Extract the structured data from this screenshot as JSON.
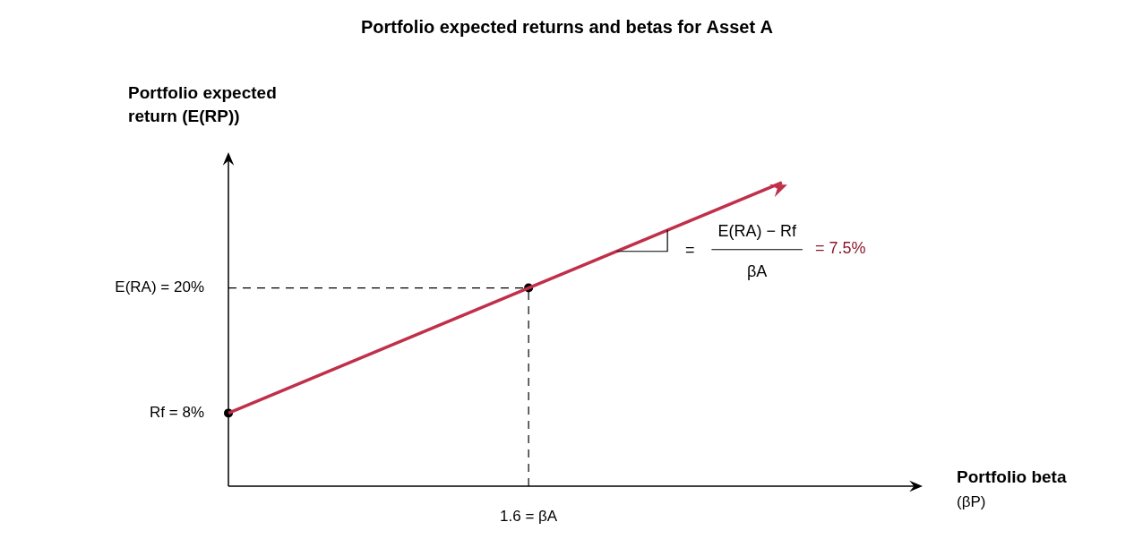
{
  "chart_data": {
    "type": "line",
    "title": "Portfolio expected returns and betas for Asset A",
    "y_label": [
      "Portfolio expected",
      "return (E(RP))"
    ],
    "x_label": [
      "Portfolio beta",
      "(βP)"
    ],
    "xlim": [
      0,
      3.7
    ],
    "ylim": [
      1,
      33
    ],
    "xticks": [
      {
        "value": 1.6,
        "label": "1.6 = βA"
      }
    ],
    "yticks": [
      {
        "value": 8,
        "label": "Rf = 8%"
      },
      {
        "value": 20,
        "label": "E(RA) = 20%"
      }
    ],
    "grid": false,
    "series": [
      {
        "type": "line",
        "x": [
          0,
          1.6
        ],
        "values": [
          20,
          20
        ],
        "color": "#000000",
        "line_style": "dashed",
        "marker": "none"
      },
      {
        "type": "line",
        "x": [
          1.6,
          1.6
        ],
        "values": [
          1,
          20
        ],
        "color": "#000000",
        "line_style": "dashed",
        "marker": "none"
      },
      {
        "type": "line",
        "x": [
          2.07,
          2.34,
          2.34
        ],
        "values": [
          23.5,
          23.5,
          25.55
        ],
        "color": "#000000",
        "line_style": "solid",
        "marker": "none"
      },
      {
        "type": "line",
        "x": [
          0,
          1.6,
          2.95
        ],
        "values": [
          8,
          20,
          30.1
        ],
        "color": "#c0304a",
        "line_style": "solid",
        "marker": "arrow"
      },
      {
        "type": "scatter",
        "x": [
          0,
          1.6
        ],
        "values": [
          8,
          20
        ],
        "color": "#000000",
        "marker": "circle"
      }
    ],
    "annotation": {
      "prefix": "=",
      "numerator": "E(RA) − Rf",
      "denominator": "βA",
      "result": "= 7.5%",
      "color": "#8b1a2b"
    }
  }
}
